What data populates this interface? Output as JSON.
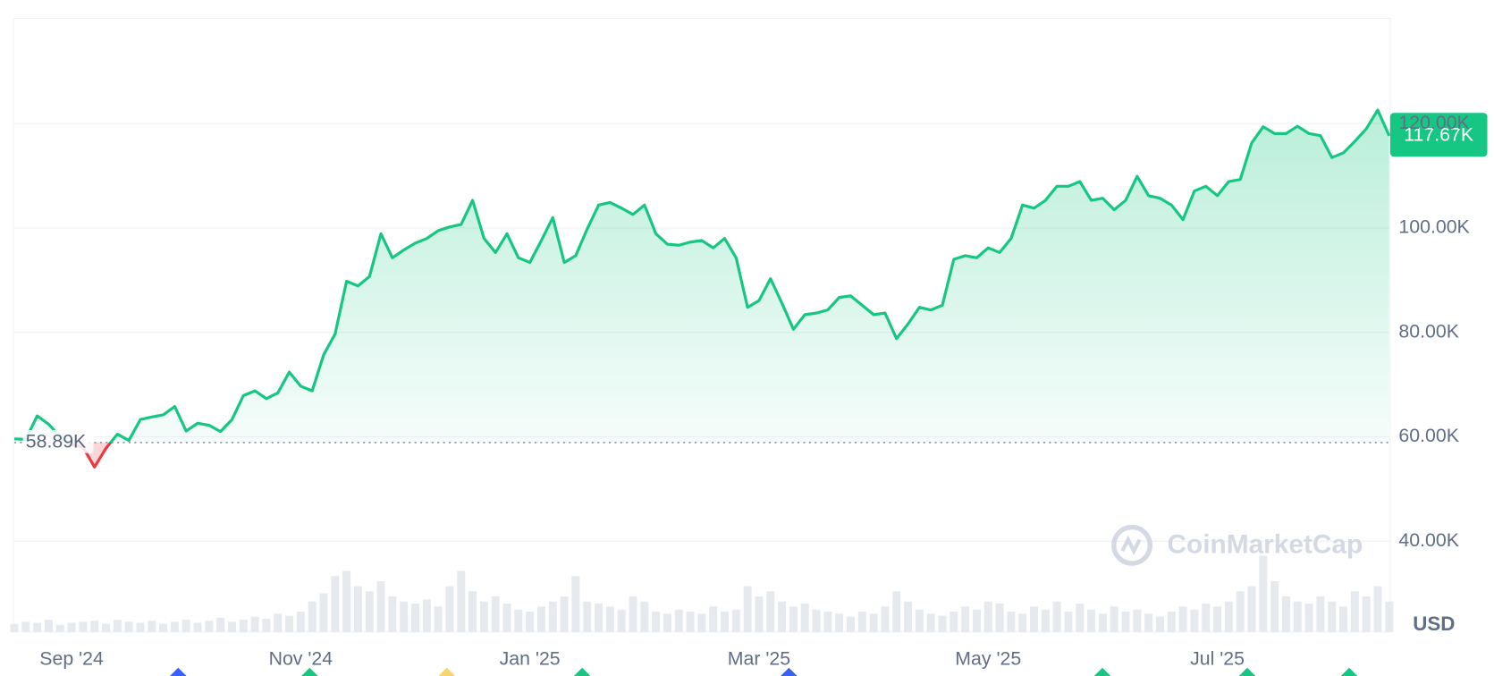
{
  "chart_data": {
    "type": "line",
    "currency": "USD",
    "watermark": "CoinMarketCap",
    "categories": [
      null,
      null,
      null,
      null,
      null,
      "Sep '24",
      null,
      null,
      null,
      null,
      null,
      null,
      null,
      null,
      null,
      null,
      null,
      null,
      null,
      null,
      null,
      null,
      null,
      null,
      null,
      "Nov '24",
      null,
      null,
      null,
      null,
      null,
      null,
      null,
      null,
      null,
      null,
      null,
      null,
      null,
      null,
      null,
      null,
      null,
      null,
      null,
      "Jan '25",
      null,
      null,
      null,
      null,
      null,
      null,
      null,
      null,
      null,
      null,
      null,
      null,
      null,
      null,
      null,
      null,
      null,
      null,
      null,
      "Mar '25",
      null,
      null,
      null,
      null,
      null,
      null,
      null,
      null,
      null,
      null,
      null,
      null,
      null,
      null,
      null,
      null,
      null,
      null,
      null,
      "May '25",
      null,
      null,
      null,
      null,
      null,
      null,
      null,
      null,
      null,
      null,
      null,
      null,
      null,
      null,
      null,
      null,
      null,
      null,
      null,
      "Jul '25",
      null,
      null,
      null,
      null,
      null,
      null,
      null,
      null,
      null,
      null,
      null,
      null,
      null,
      null,
      null
    ],
    "series": [
      {
        "color": "#16c784",
        "down_color": "#ea3943",
        "values": [
          59600,
          59500,
          64000,
          62400,
          60000,
          58500,
          58000,
          54200,
          57800,
          60500,
          59300,
          63300,
          63800,
          64200,
          65800,
          61100,
          62600,
          62200,
          61000,
          63300,
          67900,
          68800,
          67300,
          68400,
          72400,
          69700,
          68800,
          75700,
          79700,
          89800,
          88900,
          90700,
          98900,
          94300,
          95800,
          97100,
          98000,
          99500,
          100200,
          100700,
          105300,
          98000,
          95300,
          98900,
          94300,
          93400,
          97600,
          102000,
          93400,
          94700,
          99800,
          104400,
          104900,
          103800,
          102600,
          104400,
          98900,
          96900,
          96700,
          97300,
          97600,
          96200,
          98000,
          94300,
          84800,
          86100,
          90300,
          85600,
          80600,
          83400,
          83700,
          84300,
          86700,
          87000,
          85200,
          83400,
          83700,
          78800,
          81600,
          84800,
          84300,
          85200,
          94000,
          94700,
          94300,
          96200,
          95300,
          98000,
          104400,
          103800,
          105300,
          108000,
          108000,
          108900,
          105300,
          105700,
          103500,
          105300,
          109900,
          106200,
          105700,
          104400,
          101600,
          107100,
          108000,
          106200,
          108900,
          109300,
          116300,
          119400,
          118100,
          118100,
          119500,
          118100,
          117700,
          113500,
          114400,
          116600,
          119000,
          122600,
          117670
        ]
      }
    ],
    "volume": [
      8,
      10,
      9,
      12,
      7,
      9,
      10,
      11,
      8,
      12,
      10,
      9,
      11,
      8,
      10,
      12,
      9,
      11,
      14,
      10,
      12,
      15,
      13,
      18,
      16,
      20,
      30,
      38,
      55,
      60,
      45,
      40,
      50,
      35,
      30,
      28,
      32,
      25,
      45,
      60,
      40,
      30,
      35,
      28,
      22,
      20,
      25,
      30,
      35,
      55,
      30,
      28,
      25,
      22,
      35,
      30,
      20,
      18,
      22,
      20,
      18,
      25,
      20,
      22,
      45,
      35,
      40,
      30,
      25,
      28,
      22,
      20,
      18,
      15,
      20,
      18,
      25,
      40,
      30,
      22,
      18,
      16,
      20,
      25,
      22,
      30,
      28,
      20,
      18,
      25,
      22,
      30,
      20,
      28,
      22,
      18,
      25,
      20,
      22,
      18,
      15,
      20,
      25,
      22,
      28,
      25,
      30,
      40,
      45,
      75,
      50,
      35,
      30,
      28,
      35,
      30,
      25,
      40,
      35,
      45,
      30
    ],
    "reference": {
      "value": 58890,
      "label": "58.89K"
    },
    "current": {
      "value": 117670,
      "label": "117.67K"
    },
    "ylim": [
      22600,
      140000
    ],
    "yticks": [
      {
        "value": 40000,
        "label": "40.00K"
      },
      {
        "value": 60000,
        "label": "60.00K"
      },
      {
        "value": 80000,
        "label": "80.00K"
      },
      {
        "value": 100000,
        "label": "100.00K"
      },
      {
        "value": 120000,
        "label": "120.00K"
      }
    ],
    "grid": true
  }
}
